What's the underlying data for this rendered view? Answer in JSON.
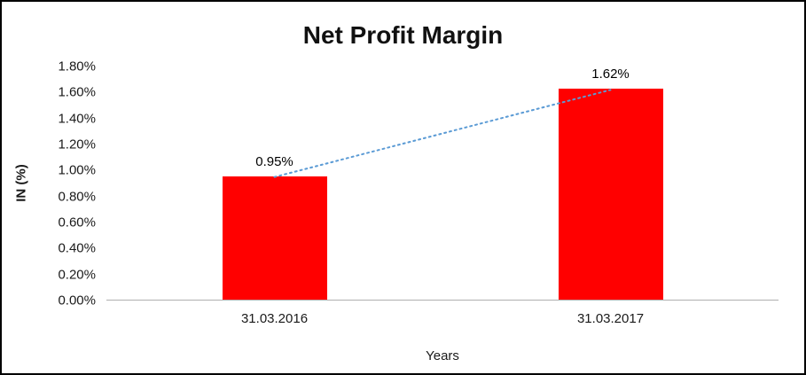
{
  "chart_data": {
    "type": "bar",
    "title": "Net Profit Margin",
    "categories": [
      "31.03.2016",
      "31.03.2017"
    ],
    "values": [
      0.95,
      1.62
    ],
    "data_labels": [
      "0.95%",
      "1.62%"
    ],
    "xlabel": "Years",
    "ylabel": "IN (%)",
    "ylim": [
      0,
      1.8
    ],
    "ytick_step": 0.2,
    "ytick_labels": [
      "0.00%",
      "0.20%",
      "0.40%",
      "0.60%",
      "0.80%",
      "1.00%",
      "1.20%",
      "1.40%",
      "1.60%",
      "1.80%"
    ],
    "bar_color": "#FF0000",
    "trendline_color": "#5B9BD5",
    "trendline_style": "dotted",
    "grid": false,
    "legend": false,
    "frame_color": "#000000"
  }
}
